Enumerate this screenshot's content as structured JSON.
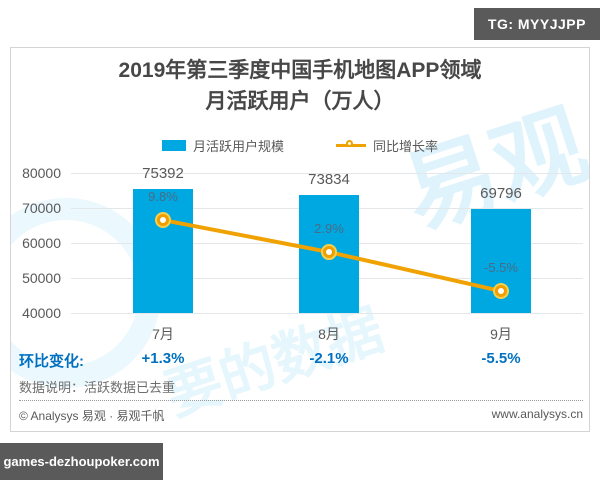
{
  "badges": {
    "tg": "TG: MYYJJPP",
    "site": "games-dezhoupoker.com"
  },
  "title": {
    "line1": "2019年第三季度中国手机地图APP领域",
    "line2": "月活跃用户（万人）"
  },
  "legend": {
    "bar_label": "月活跃用户规模",
    "line_label": "同比增长率"
  },
  "chart_data": {
    "type": "bar",
    "title": "2019年第三季度中国手机地图APP领域月活跃用户（万人）",
    "categories": [
      "7月",
      "8月",
      "9月"
    ],
    "series": [
      {
        "name": "月活跃用户规模",
        "type": "bar",
        "color": "#00a8e1",
        "values": [
          75392,
          73834,
          69796
        ]
      },
      {
        "name": "同比增长率",
        "type": "line",
        "color": "#f0a202",
        "values": [
          9.8,
          2.9,
          -5.5
        ],
        "labels": [
          "9.8%",
          "2.9%",
          "-5.5%"
        ]
      }
    ],
    "value_labels": [
      "75392",
      "73834",
      "69796"
    ],
    "yticks": [
      "40000",
      "50000",
      "60000",
      "70000",
      "80000"
    ],
    "ylim": [
      40000,
      80000
    ],
    "grid": true,
    "legend_position": "top"
  },
  "mom": {
    "label": "环比变化:",
    "values": [
      "+1.3%",
      "-2.1%",
      "-5.5%"
    ]
  },
  "note": "数据说明：活跃数据已去重",
  "footer": {
    "left": "© Analysys 易观 · 易观千帆",
    "right": "www.analysys.cn"
  },
  "watermark": {
    "w1": "易观",
    "w2": "要的数据"
  },
  "colors": {
    "bar": "#00a8e1",
    "line": "#f0a202",
    "accent_blue": "#0070c0",
    "badge_bg": "#5a5a5a"
  }
}
